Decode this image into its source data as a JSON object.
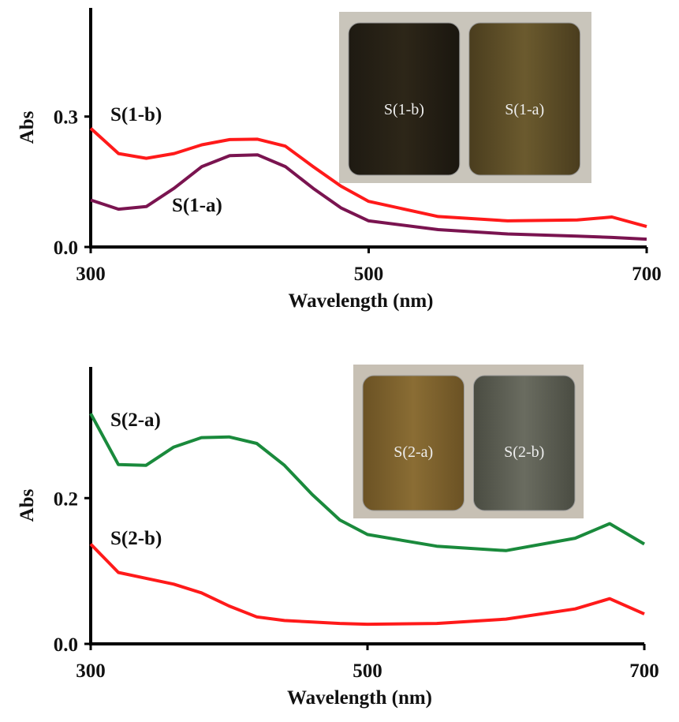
{
  "chart_data": [
    {
      "type": "line",
      "x_label": "Wavelength (nm)",
      "y_label": "Abs",
      "x": [
        300,
        320,
        340,
        360,
        380,
        400,
        420,
        440,
        460,
        480,
        500,
        550,
        600,
        650,
        675,
        700
      ],
      "xlim": [
        300,
        700
      ],
      "xticks": [
        300,
        500,
        700
      ],
      "ylim": [
        0,
        0.55
      ],
      "yticks": [
        {
          "value": 0,
          "label": "0.0"
        },
        0.3
      ],
      "series": [
        {
          "name": "S(1-b)",
          "color": "#ff1a1a",
          "values": [
            0.273,
            0.215,
            0.204,
            0.215,
            0.235,
            0.247,
            0.248,
            0.232,
            0.185,
            0.14,
            0.105,
            0.07,
            0.06,
            0.062,
            0.069,
            0.047
          ]
        },
        {
          "name": "S(1-a)",
          "color": "#7a1450",
          "values": [
            0.108,
            0.087,
            0.093,
            0.135,
            0.185,
            0.21,
            0.212,
            0.185,
            0.135,
            0.09,
            0.06,
            0.04,
            0.03,
            0.025,
            0.022,
            0.018
          ]
        }
      ],
      "inset_labels": [
        "S(1-b)",
        "S(1-a)"
      ]
    },
    {
      "type": "line",
      "x_label": "Wavelength (nm)",
      "y_label": "Abs",
      "x": [
        300,
        320,
        340,
        360,
        380,
        400,
        420,
        440,
        460,
        480,
        500,
        550,
        600,
        650,
        675,
        700
      ],
      "xlim": [
        300,
        700
      ],
      "xticks": [
        300,
        500,
        700
      ],
      "ylim": [
        0,
        0.38
      ],
      "yticks": [
        {
          "value": 0,
          "label": "0.0"
        },
        0.2
      ],
      "series": [
        {
          "name": "S(2-a)",
          "color": "#1a8a3c",
          "values": [
            0.316,
            0.246,
            0.245,
            0.27,
            0.283,
            0.284,
            0.275,
            0.245,
            0.205,
            0.17,
            0.15,
            0.134,
            0.128,
            0.145,
            0.165,
            0.137
          ]
        },
        {
          "name": "S(2-b)",
          "color": "#ff1a1a",
          "values": [
            0.137,
            0.098,
            0.09,
            0.082,
            0.07,
            0.052,
            0.037,
            0.032,
            0.03,
            0.028,
            0.027,
            0.028,
            0.034,
            0.048,
            0.062,
            0.041
          ]
        }
      ],
      "inset_labels": [
        "S(2-a)",
        "S(2-b)"
      ]
    }
  ]
}
